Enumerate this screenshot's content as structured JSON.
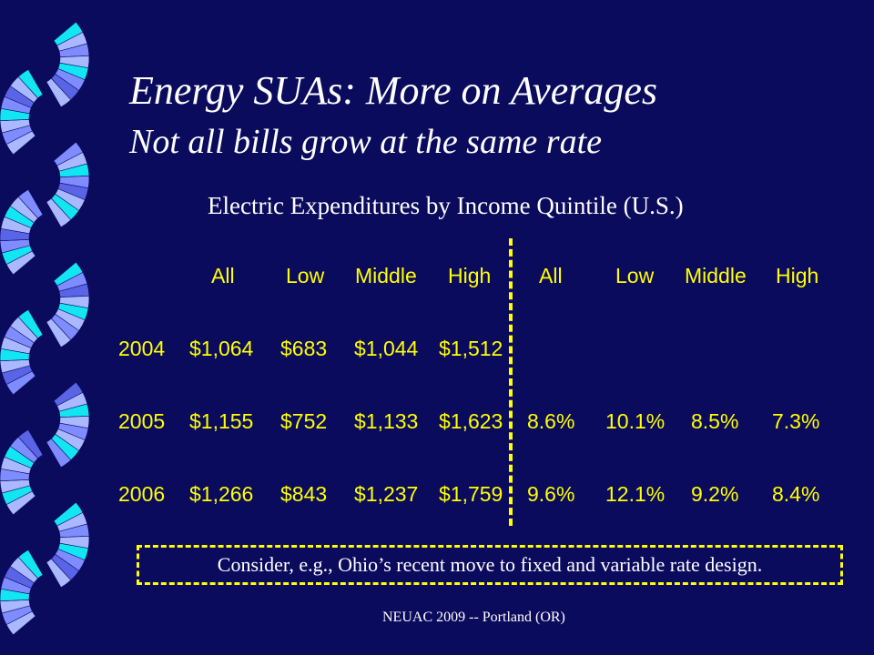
{
  "slide": {
    "title": "Energy SUAs: More on Averages",
    "subtitle": "Not all bills grow at the same rate",
    "table_caption": "Electric Expenditures by Income Quintile (U.S.)",
    "note": "Consider, e.g., Ohio’s recent move to fixed and variable rate design.",
    "footer": "NEUAC 2009 -- Portland (OR)",
    "decoration": "blue-cyan-fan-chain"
  },
  "table": {
    "headers": [
      "",
      "All",
      "Low",
      "Middle",
      "High",
      "All",
      "Low",
      "Middle",
      "High"
    ],
    "rows": [
      [
        "2004",
        "$1,064",
        "$683",
        "$1,044",
        "$1,512",
        "",
        "",
        "",
        ""
      ],
      [
        "2005",
        "$1,155",
        "$752",
        "$1,133",
        "$1,623",
        "8.6%",
        "10.1%",
        "8.5%",
        "7.3%"
      ],
      [
        "2006",
        "$1,266",
        "$843",
        "$1,237",
        "$1,759",
        "9.6%",
        "12.1%",
        "9.2%",
        "8.4%"
      ]
    ]
  },
  "colors": {
    "background": "#0b0b5e",
    "text": "#ffffff",
    "table_text": "#ffff00",
    "fan_cyan": "#12e6f2",
    "fan_light": "#aab8ff",
    "fan_mid": "#7f8cff",
    "fan_dark": "#5a64e6"
  }
}
